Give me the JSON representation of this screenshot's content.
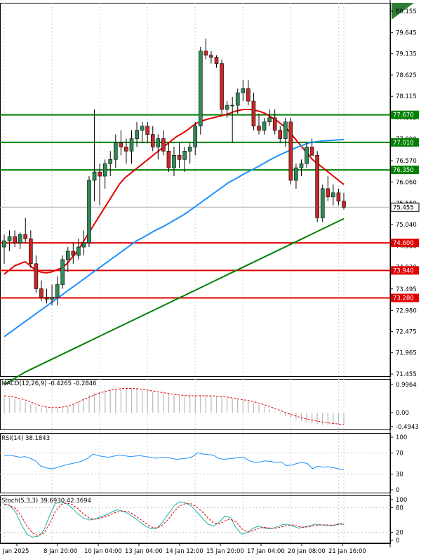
{
  "chart_data": [
    {
      "type": "candlestick",
      "panel": "price",
      "y_ticks": [
        "80.155",
        "79.645",
        "79.135",
        "78.625",
        "78.115",
        "77.605",
        "77.090",
        "76.570",
        "76.060",
        "75.550",
        "75.040",
        "74.530",
        "74.020",
        "73.495",
        "72.980",
        "72.475",
        "71.965",
        "71.455"
      ],
      "ylim": [
        71.455,
        80.155
      ],
      "x_ticks": [
        "Jan 2025",
        "8 Jan 20:00",
        "10 Jan 04:00",
        "13 Jan 04:00",
        "14 Jan 12:00",
        "15 Jan 20:00",
        "17 Jan 04:00",
        "20 Jan 08:00",
        "21 Jan 16:00"
      ],
      "current_price": "75.455",
      "levels": [
        {
          "label": "77.670",
          "value": 77.67,
          "color": "#008000"
        },
        {
          "label": "77.010",
          "value": 77.01,
          "color": "#008000"
        },
        {
          "label": "76.350",
          "value": 76.35,
          "color": "#008000"
        },
        {
          "label": "74.600",
          "value": 74.6,
          "color": "#e00000"
        },
        {
          "label": "73.940",
          "value": 73.94,
          "color": "#e00000"
        },
        {
          "label": "73.280",
          "value": 73.28,
          "color": "#e00000"
        }
      ],
      "candles": [
        [
          74.5,
          74.8,
          74.1,
          74.65
        ],
        [
          74.65,
          74.9,
          74.4,
          74.75
        ],
        [
          74.75,
          74.9,
          74.5,
          74.6
        ],
        [
          74.6,
          74.85,
          74.45,
          74.8
        ],
        [
          74.8,
          75.2,
          74.6,
          74.7
        ],
        [
          74.7,
          74.9,
          74.0,
          74.1
        ],
        [
          74.1,
          74.3,
          73.4,
          73.5
        ],
        [
          73.5,
          73.7,
          73.2,
          73.3
        ],
        [
          73.3,
          73.5,
          73.15,
          73.25
        ],
        [
          73.25,
          73.6,
          73.1,
          73.3
        ],
        [
          73.3,
          73.8,
          73.1,
          73.6
        ],
        [
          73.6,
          74.3,
          73.5,
          74.2
        ],
        [
          74.2,
          74.5,
          73.9,
          74.4
        ],
        [
          74.4,
          74.6,
          74.1,
          74.3
        ],
        [
          74.3,
          74.7,
          74.2,
          74.5
        ],
        [
          74.5,
          74.9,
          74.3,
          74.6
        ],
        [
          74.6,
          76.2,
          74.5,
          76.1
        ],
        [
          76.1,
          77.8,
          75.6,
          76.3
        ],
        [
          76.3,
          76.5,
          75.5,
          76.2
        ],
        [
          76.2,
          76.6,
          75.9,
          76.5
        ],
        [
          76.5,
          76.8,
          76.2,
          76.6
        ],
        [
          76.6,
          77.2,
          76.4,
          77.0
        ],
        [
          77.0,
          77.3,
          76.7,
          76.9
        ],
        [
          76.9,
          77.1,
          76.5,
          76.8
        ],
        [
          76.8,
          77.3,
          76.5,
          77.1
        ],
        [
          77.1,
          77.5,
          76.9,
          77.3
        ],
        [
          77.3,
          77.5,
          77.0,
          77.4
        ],
        [
          77.4,
          77.5,
          77.0,
          77.2
        ],
        [
          77.2,
          77.4,
          76.8,
          76.9
        ],
        [
          76.9,
          77.2,
          76.6,
          77.1
        ],
        [
          77.1,
          77.3,
          76.7,
          76.8
        ],
        [
          76.8,
          77.0,
          76.3,
          76.4
        ],
        [
          76.4,
          76.9,
          76.2,
          76.7
        ],
        [
          76.7,
          77.0,
          76.4,
          76.6
        ],
        [
          76.6,
          76.9,
          76.3,
          76.8
        ],
        [
          76.8,
          77.0,
          76.5,
          76.9
        ],
        [
          76.9,
          77.5,
          76.7,
          77.4
        ],
        [
          77.4,
          79.3,
          77.2,
          79.2
        ],
        [
          79.2,
          79.5,
          79.0,
          79.1
        ],
        [
          79.1,
          79.2,
          78.9,
          79.05
        ],
        [
          79.05,
          79.1,
          78.8,
          78.9
        ],
        [
          78.9,
          79.0,
          77.7,
          77.8
        ],
        [
          77.8,
          78.0,
          77.6,
          77.9
        ],
        [
          77.9,
          78.1,
          77.0,
          77.9
        ],
        [
          77.9,
          78.3,
          77.7,
          78.2
        ],
        [
          78.2,
          78.5,
          78.0,
          78.3
        ],
        [
          78.3,
          78.5,
          77.9,
          78.0
        ],
        [
          78.0,
          78.2,
          77.3,
          77.4
        ],
        [
          77.4,
          77.7,
          77.2,
          77.3
        ],
        [
          77.3,
          77.6,
          77.2,
          77.5
        ],
        [
          77.5,
          77.8,
          77.4,
          77.6
        ],
        [
          77.6,
          77.8,
          77.2,
          77.3
        ],
        [
          77.3,
          77.4,
          77.0,
          77.1
        ],
        [
          77.1,
          77.6,
          76.9,
          77.5
        ],
        [
          77.5,
          77.6,
          76.0,
          76.1
        ],
        [
          76.1,
          76.5,
          75.9,
          76.4
        ],
        [
          76.4,
          76.6,
          76.2,
          76.5
        ],
        [
          76.5,
          77.0,
          76.4,
          76.9
        ],
        [
          76.9,
          77.1,
          76.7,
          76.7
        ],
        [
          76.7,
          76.8,
          75.1,
          75.2
        ],
        [
          75.2,
          76.0,
          75.1,
          75.9
        ],
        [
          75.9,
          76.2,
          75.6,
          75.7
        ],
        [
          75.7,
          76.0,
          75.5,
          75.8
        ],
        [
          75.8,
          75.9,
          75.5,
          75.6
        ],
        [
          75.6,
          75.8,
          75.4,
          75.455
        ]
      ],
      "series": [
        {
          "name": "",
          "color": "#e00000",
          "values": [
            73.85,
            73.95,
            74.05,
            74.1,
            74.15,
            74.05,
            73.95,
            73.9,
            73.88,
            73.9,
            73.95,
            74.0,
            74.1,
            74.25,
            74.4,
            74.6,
            74.8,
            75.0,
            75.2,
            75.4,
            75.6,
            75.8,
            76.0,
            76.15,
            76.25,
            76.35,
            76.45,
            76.55,
            76.65,
            76.75,
            76.85,
            76.95,
            77.05,
            77.15,
            77.22,
            77.3,
            77.4,
            77.48,
            77.53,
            77.57,
            77.6,
            77.63,
            77.66,
            77.7,
            77.75,
            77.78,
            77.8,
            77.8,
            77.78,
            77.75,
            77.7,
            77.62,
            77.55,
            77.45,
            77.35,
            77.2,
            77.05,
            76.9,
            76.75,
            76.6,
            76.5,
            76.4,
            76.3,
            76.2,
            76.1,
            76.0
          ]
        },
        {
          "name": "",
          "color": "#1e90ff",
          "values": [
            72.35,
            72.45,
            72.55,
            72.65,
            72.75,
            72.85,
            72.95,
            73.05,
            73.15,
            73.25,
            73.35,
            73.45,
            73.55,
            73.65,
            73.75,
            73.85,
            73.95,
            74.05,
            74.15,
            74.25,
            74.35,
            74.45,
            74.55,
            74.65,
            74.72,
            74.8,
            74.88,
            74.95,
            75.02,
            75.1,
            75.18,
            75.26,
            75.35,
            75.45,
            75.55,
            75.65,
            75.75,
            75.85,
            75.95,
            76.05,
            76.12,
            76.2,
            76.28,
            76.35,
            76.42,
            76.5,
            76.58,
            76.65,
            76.72,
            76.78,
            76.84,
            76.9,
            76.95,
            77.0,
            77.02,
            77.04,
            77.05,
            77.06,
            77.07,
            77.08
          ]
        },
        {
          "name": "",
          "color": "#008000",
          "values": [
            71.2,
            71.3,
            71.4,
            71.5,
            71.58,
            71.66,
            71.74,
            71.82,
            71.9,
            71.98,
            72.06,
            72.14,
            72.22,
            72.3,
            72.38,
            72.46,
            72.54,
            72.62,
            72.7,
            72.78,
            72.86,
            72.94,
            73.02,
            73.1,
            73.18,
            73.26,
            73.34,
            73.42,
            73.5,
            73.58,
            73.66,
            73.74,
            73.82,
            73.9,
            73.98,
            74.06,
            74.14,
            74.22,
            74.3,
            74.38,
            74.46,
            74.54,
            74.62,
            74.7,
            74.78,
            74.86,
            74.94,
            75.02,
            75.1,
            75.18
          ]
        }
      ]
    },
    {
      "type": "bar",
      "panel": "macd",
      "title": "MACD(12,26,9) -0.4265 -0.2846",
      "y_ticks": [
        "0.9964",
        "0.00",
        "-0.4943"
      ],
      "ylim": [
        -0.4943,
        0.9964
      ],
      "histogram": [
        0.55,
        0.52,
        0.5,
        0.45,
        0.38,
        0.3,
        0.22,
        0.18,
        0.15,
        0.14,
        0.15,
        0.18,
        0.22,
        0.3,
        0.4,
        0.52,
        0.62,
        0.7,
        0.75,
        0.8,
        0.82,
        0.85,
        0.86,
        0.87,
        0.86,
        0.84,
        0.8,
        0.77,
        0.73,
        0.7,
        0.68,
        0.65,
        0.62,
        0.6,
        0.58,
        0.6,
        0.62,
        0.63,
        0.62,
        0.6,
        0.57,
        0.55,
        0.52,
        0.5,
        0.47,
        0.44,
        0.4,
        0.35,
        0.28,
        0.2,
        0.12,
        0.05,
        -0.05,
        -0.12,
        -0.18,
        -0.25,
        -0.3,
        -0.35,
        -0.38,
        -0.4,
        -0.42,
        -0.43,
        -0.43,
        -0.42,
        -0.4
      ],
      "signal": [
        0.6,
        0.58,
        0.55,
        0.5,
        0.45,
        0.38,
        0.3,
        0.24,
        0.2,
        0.18,
        0.18,
        0.2,
        0.24,
        0.3,
        0.38,
        0.47,
        0.55,
        0.63,
        0.7,
        0.75,
        0.8,
        0.83,
        0.85,
        0.86,
        0.86,
        0.85,
        0.83,
        0.8,
        0.77,
        0.74,
        0.71,
        0.68,
        0.65,
        0.63,
        0.61,
        0.6,
        0.6,
        0.6,
        0.6,
        0.6,
        0.59,
        0.57,
        0.55,
        0.52,
        0.49,
        0.46,
        0.43,
        0.39,
        0.34,
        0.28,
        0.22,
        0.15,
        0.08,
        0.01,
        -0.06,
        -0.12,
        -0.18,
        -0.22,
        -0.26,
        -0.3,
        -0.33,
        -0.36,
        -0.38,
        -0.4,
        -0.42
      ]
    },
    {
      "type": "line",
      "panel": "rsi",
      "title": "RSI(14) 38.1843",
      "y_ticks": [
        "100",
        "70",
        "30",
        "0"
      ],
      "ylim": [
        0,
        100
      ],
      "values": [
        65,
        66,
        64,
        62,
        63,
        60,
        55,
        45,
        42,
        40,
        42,
        45,
        48,
        50,
        52,
        55,
        60,
        68,
        65,
        63,
        62,
        64,
        66,
        65,
        63,
        64,
        65,
        63,
        62,
        60,
        61,
        62,
        60,
        58,
        59,
        60,
        63,
        70,
        68,
        67,
        66,
        60,
        58,
        59,
        60,
        62,
        61,
        55,
        52,
        53,
        55,
        54,
        52,
        53,
        46,
        47,
        50,
        52,
        50,
        40,
        45,
        43,
        44,
        42,
        40,
        38
      ]
    },
    {
      "type": "line",
      "panel": "stoch",
      "title": "Stoch(5,3,3) 39.6930 42.3694",
      "y_ticks": [
        "100",
        "80",
        "20",
        "0"
      ],
      "ylim": [
        0,
        100
      ],
      "k": [
        90,
        85,
        70,
        40,
        15,
        8,
        10,
        25,
        60,
        90,
        95,
        90,
        80,
        65,
        55,
        50,
        52,
        58,
        62,
        70,
        75,
        72,
        65,
        55,
        45,
        35,
        28,
        30,
        45,
        65,
        85,
        95,
        92,
        85,
        70,
        55,
        40,
        35,
        45,
        60,
        55,
        30,
        15,
        20,
        30,
        35,
        30,
        28,
        32,
        38,
        40,
        35,
        30,
        33,
        36,
        40,
        38,
        37,
        36,
        40,
        39
      ],
      "d": [
        88,
        86,
        78,
        60,
        35,
        18,
        12,
        18,
        40,
        70,
        88,
        92,
        88,
        78,
        65,
        55,
        52,
        55,
        58,
        65,
        70,
        72,
        70,
        62,
        52,
        42,
        33,
        30,
        38,
        52,
        70,
        85,
        90,
        90,
        82,
        70,
        55,
        43,
        40,
        48,
        52,
        45,
        28,
        20,
        24,
        30,
        32,
        30,
        30,
        33,
        37,
        38,
        34,
        32,
        34,
        37,
        38,
        38,
        37,
        39,
        42
      ]
    }
  ]
}
